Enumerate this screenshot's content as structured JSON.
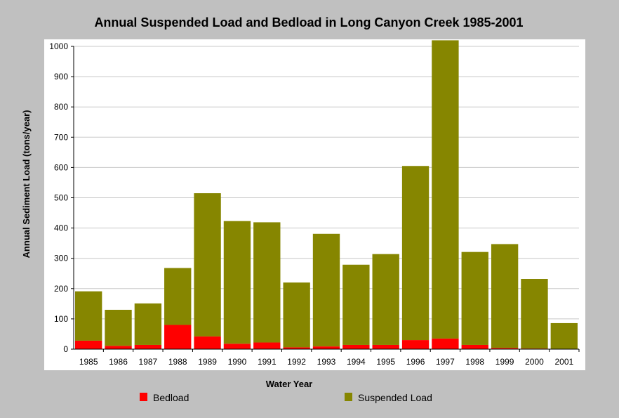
{
  "chart_data": {
    "type": "bar",
    "stacked": true,
    "title": "Annual Suspended Load and Bedload in Long Canyon Creek 1985-2001",
    "xlabel": "Water Year",
    "ylabel": "Annual Sediment Load (tons/year)",
    "ylim": [
      0,
      1000
    ],
    "yticks": [
      0,
      100,
      200,
      300,
      400,
      500,
      600,
      700,
      800,
      900,
      1000
    ],
    "categories": [
      "1985",
      "1986",
      "1987",
      "1988",
      "1989",
      "1990",
      "1991",
      "1992",
      "1993",
      "1994",
      "1995",
      "1996",
      "1997",
      "1998",
      "1999",
      "2000",
      "2001"
    ],
    "series": [
      {
        "name": "Bedload",
        "color": "#ff0000",
        "values": [
          28,
          11,
          14,
          80,
          42,
          18,
          22,
          6,
          9,
          14,
          14,
          30,
          35,
          14,
          4,
          2,
          0
        ]
      },
      {
        "name": "Suspended Load",
        "color": "#868600",
        "values": [
          163,
          119,
          137,
          188,
          473,
          405,
          397,
          214,
          372,
          265,
          300,
          575,
          985,
          307,
          343,
          230,
          86
        ]
      }
    ],
    "grid": "horizontal",
    "legend_position": "bottom"
  }
}
